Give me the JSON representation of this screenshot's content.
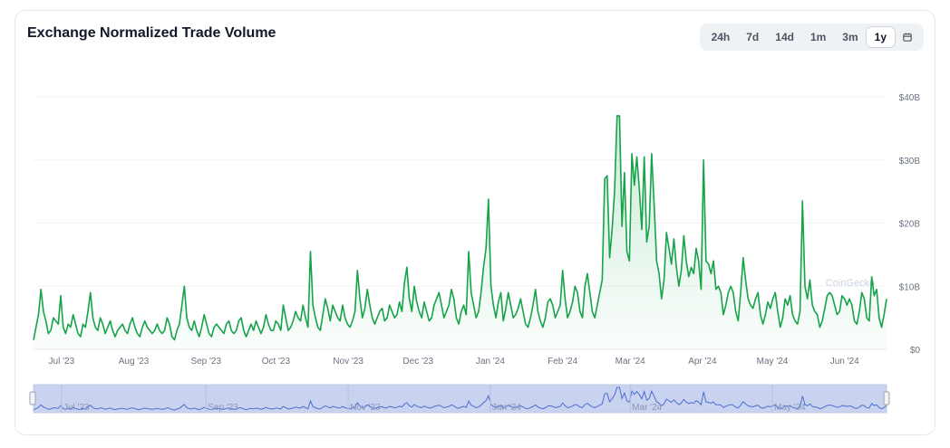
{
  "header": {
    "title": "Exchange Normalized Trade Volume",
    "ranges": [
      "24h",
      "7d",
      "14d",
      "1m",
      "3m",
      "1y"
    ],
    "active_range": "1y",
    "calendar_icon": "calendar-icon"
  },
  "watermark": "CoinGecko",
  "colors": {
    "line": "#16a34a",
    "fill_top": "#16a34a",
    "navigator_line": "#4c6ed1",
    "navigator_fill": "#c9d3ef"
  },
  "chart_data": {
    "type": "area",
    "yunit": "B",
    "ylim": [
      0,
      40
    ],
    "yticks": [
      "$0",
      "$10B",
      "$20B",
      "$30B",
      "$40B"
    ],
    "x_start": "2023-06-19",
    "x_end": "2024-06-19",
    "xticks": [
      "Jul '23",
      "Aug '23",
      "Sep '23",
      "Oct '23",
      "Nov '23",
      "Dec '23",
      "Jan '24",
      "Feb '24",
      "Mar '24",
      "Apr '24",
      "May '24",
      "Jun '24"
    ],
    "navigator_ticks": [
      "Jul '23",
      "Sep '23",
      "Nov '23",
      "Jan '24",
      "Mar '24",
      "May '24"
    ],
    "legend": "none",
    "grid": true,
    "values": [
      1.5,
      3.5,
      5.5,
      9.5,
      6,
      4.5,
      2.5,
      3,
      5,
      4.5,
      4,
      8.5,
      3.5,
      2.5,
      4,
      3.5,
      5.5,
      4,
      2.5,
      2,
      4,
      3.5,
      6,
      9,
      5,
      3.5,
      3,
      5,
      4,
      2.5,
      3.5,
      4.5,
      3,
      2,
      3,
      3.5,
      4,
      3,
      2.5,
      4,
      5,
      3.5,
      2.5,
      2,
      3.5,
      4.5,
      3.5,
      3,
      2.5,
      3,
      4,
      3,
      2.5,
      3,
      5,
      4,
      2,
      1.5,
      3,
      4,
      7,
      10,
      5,
      3.5,
      3,
      4.5,
      3,
      2,
      3.5,
      5.5,
      4,
      2.5,
      2,
      3.5,
      4,
      3.5,
      3,
      2.5,
      4,
      4.5,
      3,
      2.5,
      3,
      4.5,
      5,
      3,
      2,
      3,
      4,
      3,
      4.5,
      3.5,
      2.5,
      3.5,
      5.5,
      4,
      3,
      3,
      4.5,
      4,
      3,
      7,
      5,
      3,
      3.5,
      4.5,
      6,
      5,
      4.5,
      7,
      5,
      3.5,
      15.5,
      7,
      5,
      3.5,
      3,
      5.5,
      8,
      6.5,
      4.5,
      7,
      6,
      5,
      4.5,
      7,
      5,
      4,
      3.5,
      4.5,
      6,
      12.5,
      8,
      5,
      6.5,
      9.5,
      7,
      5,
      4,
      5,
      6,
      6.5,
      4.5,
      5,
      7,
      6,
      5,
      5.5,
      7.5,
      6,
      10.5,
      13,
      8,
      6,
      10,
      7.5,
      6,
      5,
      7.5,
      6,
      4.5,
      5,
      7,
      8,
      9,
      7,
      5,
      6,
      7,
      9.5,
      8,
      5,
      4,
      6,
      7,
      5.5,
      15.5,
      9,
      7,
      5,
      6,
      9,
      13,
      16,
      23.8,
      10,
      7,
      5,
      7.5,
      9,
      4.5,
      6.5,
      9,
      7,
      5,
      5.5,
      6.5,
      8,
      6,
      4,
      3.5,
      5,
      7,
      9.5,
      6,
      4.5,
      3.5,
      5,
      7.5,
      8,
      7,
      5,
      6,
      7,
      12.5,
      8,
      5,
      6,
      7.5,
      10,
      9,
      6,
      5,
      10,
      12,
      9,
      6,
      5,
      7,
      9,
      11,
      27,
      27.5,
      14.5,
      19,
      25,
      37,
      37,
      19.5,
      28,
      15.5,
      14,
      31,
      26,
      30.5,
      25.5,
      19,
      30.5,
      17,
      19.5,
      31,
      23,
      14,
      12,
      8,
      11,
      18.5,
      16,
      13.5,
      17.5,
      13,
      10,
      12.5,
      18,
      14,
      11.5,
      13,
      12,
      16,
      14,
      9.5,
      30,
      14,
      13.5,
      12,
      14,
      9.5,
      10,
      9,
      5.5,
      7,
      9,
      10,
      9,
      6,
      4.5,
      9,
      14.5,
      11,
      8,
      7,
      6.5,
      8,
      9,
      5.5,
      4,
      5.5,
      7.5,
      6.5,
      8,
      9,
      6,
      3.5,
      5,
      8,
      7,
      8.5,
      5.5,
      4.5,
      4,
      6,
      23.5,
      10,
      8,
      11,
      7,
      6,
      5.5,
      3.5,
      4.5,
      6.5,
      8.5,
      9,
      8.5,
      7,
      5.5,
      6,
      8.5,
      8,
      7,
      8,
      7,
      4.5,
      4,
      6,
      9,
      8,
      5,
      4.5,
      11.5,
      8.5,
      9.5,
      5,
      3.5,
      5.5,
      8
    ]
  }
}
